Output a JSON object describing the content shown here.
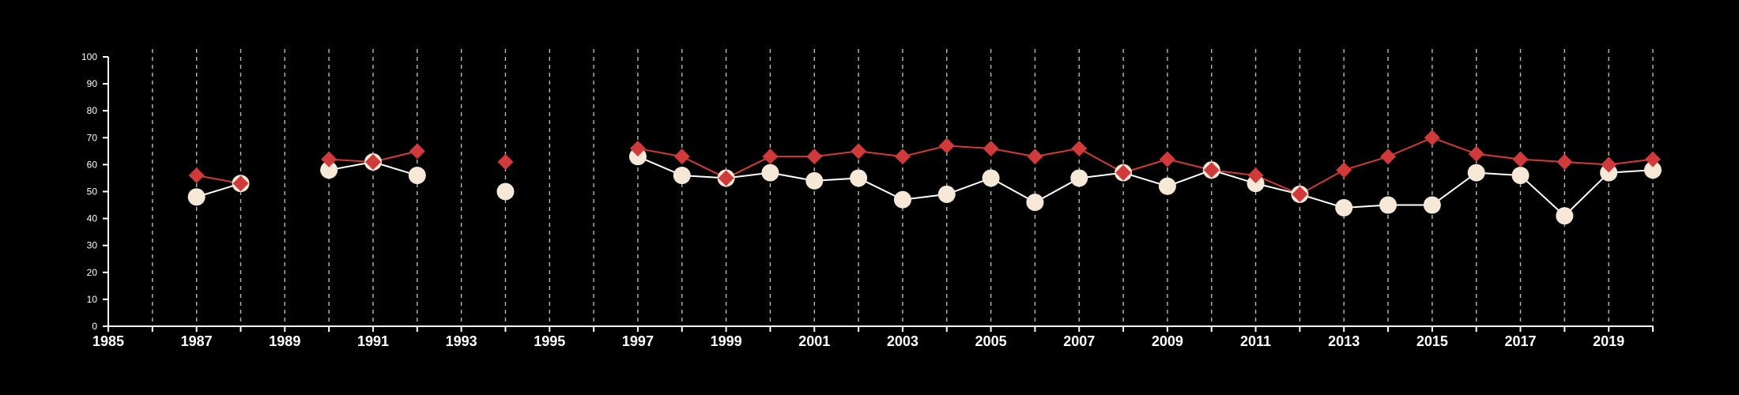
{
  "colors": {
    "background": "#000000",
    "axis": "#ffffff",
    "grid": "#b9b9b9",
    "series_a_marker": "#f5e8d6",
    "series_a_line": "#ffffff",
    "series_b_marker": "#d03a3a",
    "series_b_line": "#d03a3a"
  },
  "chart_data": {
    "type": "line",
    "title": "",
    "xlabel": "",
    "ylabel": "",
    "xlim": [
      1985,
      2020
    ],
    "ylim": [
      0,
      100
    ],
    "x_ticks": [
      1985,
      1987,
      1989,
      1991,
      1993,
      1995,
      1997,
      1999,
      2001,
      2003,
      2005,
      2007,
      2009,
      2011,
      2013,
      2015,
      2017,
      2019
    ],
    "y_ticks": [
      0,
      10,
      20,
      30,
      40,
      50,
      60,
      70,
      80,
      90,
      100
    ],
    "grid": "vertical dashed lines at each year",
    "legend": "none",
    "series": [
      {
        "marker": "circle",
        "x": [
          1987,
          1988,
          1990,
          1991,
          1992,
          1994,
          1997,
          1998,
          1999,
          2000,
          2001,
          2002,
          2003,
          2004,
          2005,
          2006,
          2007,
          2008,
          2009,
          2010,
          2011,
          2012,
          2013,
          2014,
          2015,
          2016,
          2017,
          2018,
          2019,
          2020
        ],
        "values": [
          48,
          53,
          58,
          61,
          56,
          50,
          63,
          56,
          55,
          57,
          54,
          55,
          47,
          49,
          55,
          46,
          55,
          57,
          52,
          58,
          53,
          49,
          44,
          45,
          45,
          57,
          56,
          41,
          57,
          58
        ]
      },
      {
        "marker": "diamond",
        "x": [
          1987,
          1988,
          1990,
          1991,
          1992,
          1994,
          1997,
          1998,
          1999,
          2000,
          2001,
          2002,
          2003,
          2004,
          2005,
          2006,
          2007,
          2008,
          2009,
          2010,
          2011,
          2012,
          2013,
          2014,
          2015,
          2016,
          2017,
          2018,
          2019,
          2020
        ],
        "values": [
          56,
          53,
          62,
          61,
          65,
          61,
          66,
          63,
          55,
          63,
          63,
          65,
          63,
          67,
          66,
          63,
          66,
          57,
          62,
          58,
          56,
          49,
          58,
          63,
          70,
          64,
          62,
          61,
          60,
          62
        ]
      }
    ]
  }
}
